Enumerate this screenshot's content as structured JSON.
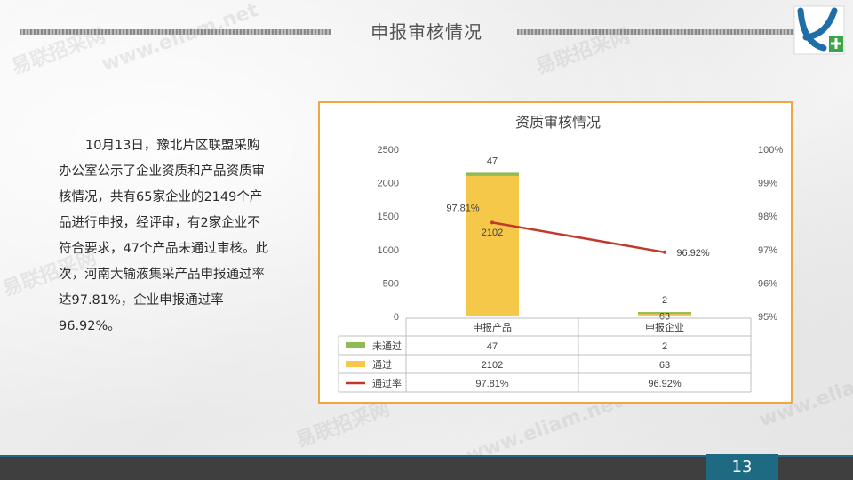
{
  "page": {
    "title": "申报审核情况",
    "page_number": "13",
    "body_text": "10月13日，豫北片区联盟采购办公室公示了企业资质和产品资质审核情况，共有65家企业的2149个产品进行申报，经评审，有2家企业不符合要求，47个产品未通过审核。此次，河南大输液集采产品申报通过率达97.81%，企业申报通过率96.92%。"
  },
  "colors": {
    "fail": "#8fbc52",
    "pass": "#f5c84a",
    "rate": "#c0392b",
    "frame": "#f0a742",
    "footer": "#3f3f3f",
    "accent": "#1e6a82"
  },
  "chart_data": {
    "type": "bar",
    "title": "资质审核情况",
    "stacked": true,
    "categories": [
      "申报产品",
      "申报企业"
    ],
    "series": [
      {
        "name": "未通过",
        "values": [
          47,
          2
        ],
        "color": "#8fbc52",
        "axis": "left"
      },
      {
        "name": "通过",
        "values": [
          2102,
          63
        ],
        "color": "#f5c84a",
        "axis": "left"
      },
      {
        "name": "通过率",
        "values": [
          97.81,
          96.92
        ],
        "labels": [
          "97.81%",
          "96.92%"
        ],
        "color": "#c0392b",
        "axis": "right",
        "type": "line"
      }
    ],
    "y_left": {
      "min": 0,
      "max": 2500,
      "ticks": [
        "0",
        "500",
        "1000",
        "1500",
        "2000",
        "2500"
      ]
    },
    "y_right": {
      "min": 95,
      "max": 100,
      "ticks": [
        "95%",
        "96%",
        "97%",
        "98%",
        "99%",
        "100%"
      ]
    },
    "data_table": {
      "rows": [
        {
          "label": "未通过",
          "values": [
            "47",
            "2"
          ]
        },
        {
          "label": "通过",
          "values": [
            "2102",
            "63"
          ]
        },
        {
          "label": "通过率",
          "values": [
            "97.81%",
            "96.92%"
          ]
        }
      ]
    },
    "grid": false,
    "legend": "data-table"
  }
}
